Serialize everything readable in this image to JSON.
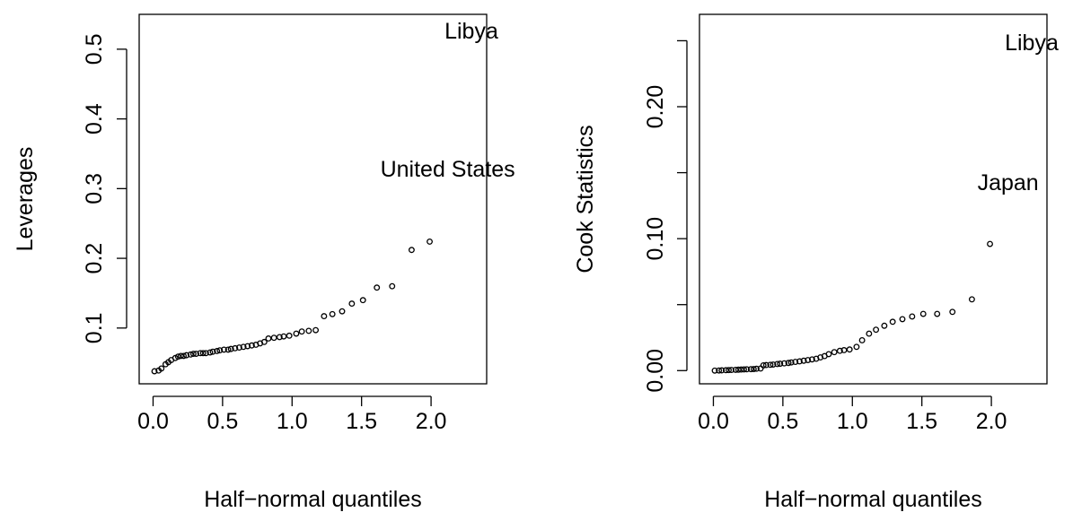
{
  "chart_data": [
    {
      "type": "scatter",
      "title": "",
      "xlabel": "Half−normal quantiles",
      "ylabel": "Leverages",
      "xlim": [
        -0.1,
        2.4
      ],
      "ylim": [
        0.02,
        0.55
      ],
      "xticks": [
        {
          "value": 0.0,
          "label": "0.0"
        },
        {
          "value": 0.5,
          "label": "0.5"
        },
        {
          "value": 1.0,
          "label": "1.0"
        },
        {
          "value": 1.5,
          "label": "1.5"
        },
        {
          "value": 2.0,
          "label": "2.0"
        }
      ],
      "yticks": [
        {
          "value": 0.1,
          "label": "0.1"
        },
        {
          "value": 0.2,
          "label": "0.2"
        },
        {
          "value": 0.3,
          "label": "0.3"
        },
        {
          "value": 0.4,
          "label": "0.4"
        },
        {
          "value": 0.5,
          "label": "0.5"
        }
      ],
      "points": [
        [
          0.01,
          0.038
        ],
        [
          0.04,
          0.039
        ],
        [
          0.06,
          0.042
        ],
        [
          0.09,
          0.048
        ],
        [
          0.11,
          0.051
        ],
        [
          0.13,
          0.054
        ],
        [
          0.16,
          0.057
        ],
        [
          0.18,
          0.059
        ],
        [
          0.2,
          0.06
        ],
        [
          0.22,
          0.06
        ],
        [
          0.24,
          0.061
        ],
        [
          0.27,
          0.062
        ],
        [
          0.29,
          0.063
        ],
        [
          0.31,
          0.063
        ],
        [
          0.34,
          0.064
        ],
        [
          0.36,
          0.064
        ],
        [
          0.38,
          0.064
        ],
        [
          0.41,
          0.065
        ],
        [
          0.43,
          0.066
        ],
        [
          0.46,
          0.067
        ],
        [
          0.48,
          0.068
        ],
        [
          0.51,
          0.069
        ],
        [
          0.54,
          0.069
        ],
        [
          0.56,
          0.07
        ],
        [
          0.59,
          0.071
        ],
        [
          0.62,
          0.072
        ],
        [
          0.65,
          0.073
        ],
        [
          0.68,
          0.074
        ],
        [
          0.71,
          0.075
        ],
        [
          0.74,
          0.076
        ],
        [
          0.77,
          0.078
        ],
        [
          0.8,
          0.08
        ],
        [
          0.83,
          0.085
        ],
        [
          0.87,
          0.086
        ],
        [
          0.91,
          0.087
        ],
        [
          0.94,
          0.088
        ],
        [
          0.98,
          0.089
        ],
        [
          1.03,
          0.092
        ],
        [
          1.07,
          0.095
        ],
        [
          1.12,
          0.096
        ],
        [
          1.17,
          0.097
        ],
        [
          1.23,
          0.117
        ],
        [
          1.29,
          0.12
        ],
        [
          1.36,
          0.124
        ],
        [
          1.43,
          0.135
        ],
        [
          1.51,
          0.14
        ],
        [
          1.61,
          0.158
        ],
        [
          1.72,
          0.16
        ],
        [
          1.86,
          0.212
        ],
        [
          1.99,
          0.224
        ]
      ],
      "annotations": [
        {
          "text": "United States",
          "x": 2.12,
          "y": 0.329
        },
        {
          "text": "Libya",
          "x": 2.29,
          "y": 0.527
        }
      ]
    },
    {
      "type": "scatter",
      "title": "",
      "xlabel": "Half−normal quantiles",
      "ylabel": "Cook Statistics",
      "xlim": [
        -0.1,
        2.4
      ],
      "ylim": [
        -0.01,
        0.27
      ],
      "xticks": [
        {
          "value": 0.0,
          "label": "0.0"
        },
        {
          "value": 0.5,
          "label": "0.5"
        },
        {
          "value": 1.0,
          "label": "1.0"
        },
        {
          "value": 1.5,
          "label": "1.5"
        },
        {
          "value": 2.0,
          "label": "2.0"
        }
      ],
      "yticks": [
        {
          "value": 0.0,
          "label": "0.00",
          "labeled": true
        },
        {
          "value": 0.05,
          "label": "",
          "labeled": false
        },
        {
          "value": 0.1,
          "label": "0.10",
          "labeled": true
        },
        {
          "value": 0.15,
          "label": "",
          "labeled": false
        },
        {
          "value": 0.2,
          "label": "0.20",
          "labeled": true
        },
        {
          "value": 0.25,
          "label": "",
          "labeled": false
        }
      ],
      "points": [
        [
          0.01,
          0.0
        ],
        [
          0.04,
          0.0001
        ],
        [
          0.06,
          0.0002
        ],
        [
          0.09,
          0.0003
        ],
        [
          0.11,
          0.0004
        ],
        [
          0.13,
          0.0005
        ],
        [
          0.16,
          0.0006
        ],
        [
          0.18,
          0.0007
        ],
        [
          0.2,
          0.0008
        ],
        [
          0.22,
          0.0009
        ],
        [
          0.24,
          0.001
        ],
        [
          0.27,
          0.0011
        ],
        [
          0.29,
          0.0012
        ],
        [
          0.31,
          0.0014
        ],
        [
          0.34,
          0.0016
        ],
        [
          0.36,
          0.004
        ],
        [
          0.38,
          0.0042
        ],
        [
          0.41,
          0.0044
        ],
        [
          0.43,
          0.0046
        ],
        [
          0.46,
          0.005
        ],
        [
          0.48,
          0.0052
        ],
        [
          0.51,
          0.0055
        ],
        [
          0.54,
          0.0058
        ],
        [
          0.56,
          0.0062
        ],
        [
          0.59,
          0.0066
        ],
        [
          0.62,
          0.007
        ],
        [
          0.65,
          0.0075
        ],
        [
          0.68,
          0.008
        ],
        [
          0.71,
          0.0085
        ],
        [
          0.74,
          0.009
        ],
        [
          0.77,
          0.01
        ],
        [
          0.8,
          0.011
        ],
        [
          0.83,
          0.0125
        ],
        [
          0.87,
          0.014
        ],
        [
          0.91,
          0.015
        ],
        [
          0.94,
          0.0155
        ],
        [
          0.98,
          0.016
        ],
        [
          1.03,
          0.018
        ],
        [
          1.07,
          0.023
        ],
        [
          1.12,
          0.028
        ],
        [
          1.17,
          0.031
        ],
        [
          1.23,
          0.034
        ],
        [
          1.29,
          0.037
        ],
        [
          1.36,
          0.039
        ],
        [
          1.43,
          0.041
        ],
        [
          1.51,
          0.043
        ],
        [
          1.61,
          0.043
        ],
        [
          1.72,
          0.0445
        ],
        [
          1.86,
          0.054
        ],
        [
          1.99,
          0.096
        ]
      ],
      "annotations": [
        {
          "text": "Japan",
          "x": 2.12,
          "y": 0.143
        },
        {
          "text": "Libya",
          "x": 2.29,
          "y": 0.249
        }
      ]
    }
  ]
}
